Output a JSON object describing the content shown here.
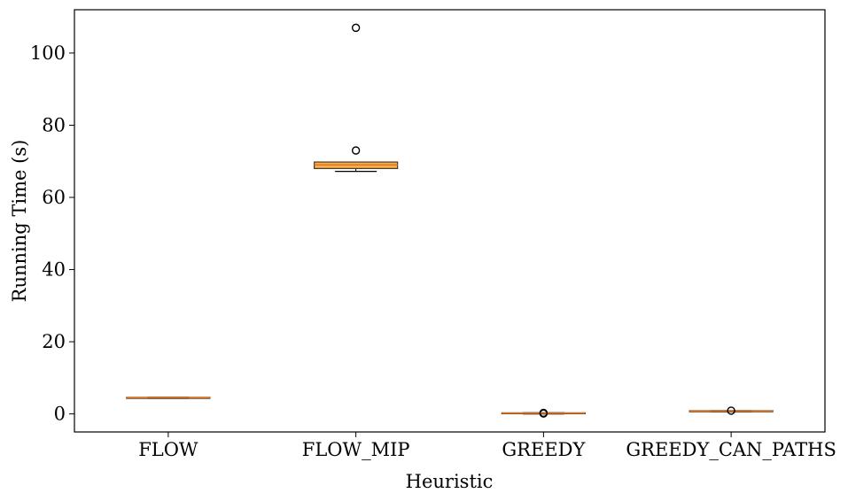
{
  "chart_data": {
    "type": "box",
    "xlabel": "Heuristic",
    "ylabel": "Running Time (s)",
    "ylim": [
      -5,
      112
    ],
    "yticks": [
      0,
      20,
      40,
      60,
      80,
      100
    ],
    "categories": [
      "FLOW",
      "FLOW_MIP",
      "GREEDY",
      "GREEDY_CAN_PATHS"
    ],
    "boxes": [
      {
        "name": "FLOW",
        "whisker_low": 4.3,
        "q1": 4.3,
        "median": 4.5,
        "q3": 4.6,
        "whisker_high": 4.6,
        "outliers": []
      },
      {
        "name": "FLOW_MIP",
        "whisker_low": 67.2,
        "q1": 68.0,
        "median": 69.0,
        "q3": 69.8,
        "whisker_high": 69.8,
        "outliers": [
          73.0,
          107.0
        ]
      },
      {
        "name": "GREEDY",
        "whisker_low": 0.0,
        "q1": 0.1,
        "median": 0.2,
        "q3": 0.3,
        "whisker_high": 0.3,
        "outliers": [
          0.3,
          0.1
        ]
      },
      {
        "name": "GREEDY_CAN_PATHS",
        "whisker_low": 0.6,
        "q1": 0.6,
        "median": 0.8,
        "q3": 0.9,
        "whisker_high": 0.9,
        "outliers": [
          0.9
        ]
      }
    ],
    "colors": {
      "box_fill": "#f5b04f",
      "box_edge": "#4a3a24",
      "median": "#e8731a",
      "whisker": "#000000",
      "axes": "#000000"
    },
    "grid": false
  }
}
